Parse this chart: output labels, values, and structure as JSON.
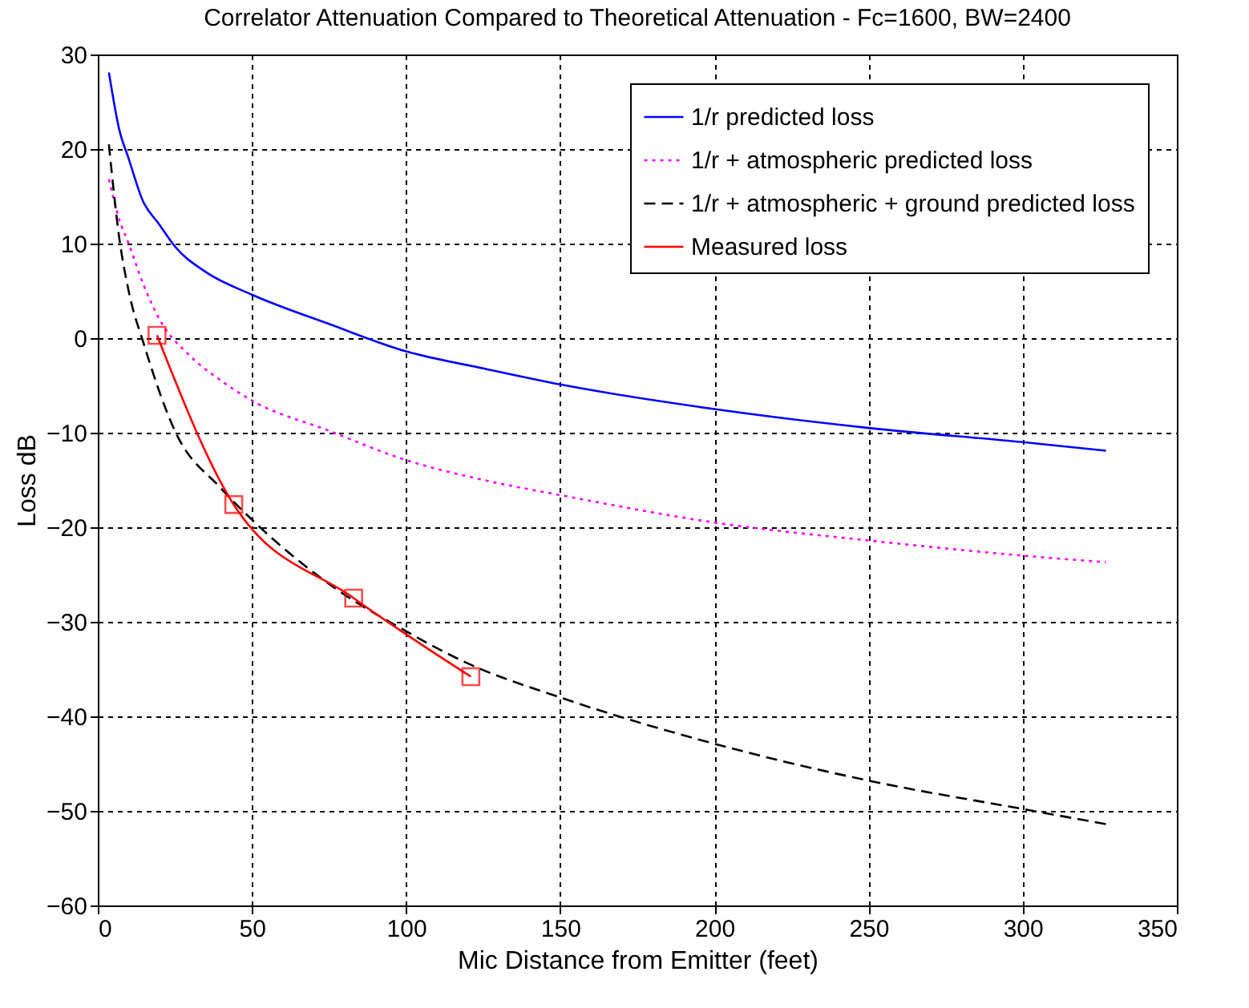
{
  "chart_data": {
    "type": "line",
    "title": "Correlator Attenuation Compared to Theoretical Attenuation - Fc=1600, BW=2400",
    "xlabel": "Mic Distance from Emitter (feet)",
    "ylabel": "Loss dB",
    "xlim": [
      0,
      350
    ],
    "xticks": [
      0,
      50,
      100,
      150,
      200,
      250,
      300,
      350
    ],
    "ylim": [
      -60,
      30
    ],
    "yticks": [
      -60,
      -50,
      -40,
      -30,
      -20,
      -10,
      0,
      10,
      20,
      30
    ],
    "grid": true,
    "legend": "top right",
    "series": [
      {
        "name": "1/r predicted loss",
        "color": "#0000ff",
        "line_style": "solid",
        "marker": "none",
        "x": [
          3.6,
          7,
          10,
          14.5,
          20,
          25,
          35,
          50,
          75,
          100,
          125,
          150,
          200,
          250,
          300,
          327
        ],
        "values": [
          28.1,
          22,
          19,
          14.6,
          12,
          9.7,
          7,
          4.6,
          1.5,
          -1.4,
          -3.2,
          -4.9,
          -7.5,
          -9.5,
          -11,
          -11.9
        ]
      },
      {
        "name": "1/r + atmospheric predicted loss",
        "color": "#ff00ff",
        "line_style": "dotted",
        "marker": "none",
        "x": [
          3.6,
          7,
          10,
          15,
          20,
          30,
          40,
          50,
          75,
          100,
          125,
          150,
          200,
          250,
          300,
          327
        ],
        "values": [
          16.8,
          12.5,
          10,
          5.5,
          2,
          -1.9,
          -4.5,
          -6.6,
          -9.8,
          -12.9,
          -15,
          -16.6,
          -19.5,
          -21.4,
          -23,
          -23.7
        ]
      },
      {
        "name": "1/r + atmospheric + ground predicted loss",
        "color": "#000000",
        "line_style": "dashed",
        "marker": "none",
        "x": [
          3.6,
          7,
          10,
          15,
          25,
          40,
          50,
          75,
          100,
          120,
          150,
          200,
          250,
          300,
          327
        ],
        "values": [
          20.5,
          10.5,
          5,
          -0.7,
          -9.8,
          -15.9,
          -19.2,
          -26,
          -31,
          -34.4,
          -38,
          -42.9,
          -46.8,
          -49.8,
          -51.4
        ]
      },
      {
        "name": "Measured loss",
        "color": "#ff0000",
        "line_style": "solid",
        "marker": "square",
        "x": [
          19.2,
          44.1,
          83,
          121
        ],
        "values": [
          0.3,
          -17.6,
          -27.5,
          -35.8
        ]
      }
    ]
  }
}
